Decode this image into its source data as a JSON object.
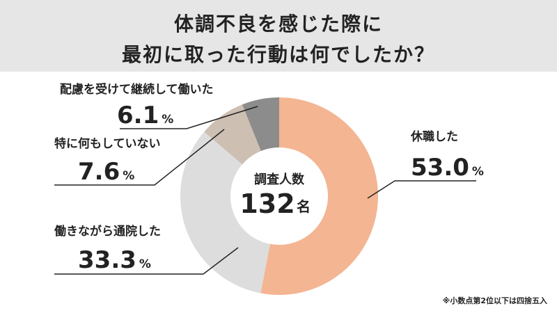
{
  "title": {
    "line1": "体調不良を感じた際に",
    "line2": "最初に取った行動は何でしたか？"
  },
  "center": {
    "label": "調査人数",
    "value": "132",
    "unit": "名"
  },
  "note": "※小数点第2位以下は四捨五入",
  "chart_data": {
    "type": "pie",
    "title": "体調不良を感じた際に 最初に取った行動は何でしたか？",
    "unit": "%",
    "slices": [
      {
        "label": "休職した",
        "value": 53.0,
        "value_text": "53.0",
        "color": "#f4b592"
      },
      {
        "label": "働きながら通院した",
        "value": 33.3,
        "value_text": "33.3",
        "color": "#dddddd"
      },
      {
        "label": "特に何もしていない",
        "value": 7.6,
        "value_text": "7.6",
        "color": "#cdbfb2"
      },
      {
        "label": "配慮を受けて継続して働いた",
        "value": 6.1,
        "value_text": "6.1",
        "color": "#8c8c8c"
      }
    ]
  }
}
